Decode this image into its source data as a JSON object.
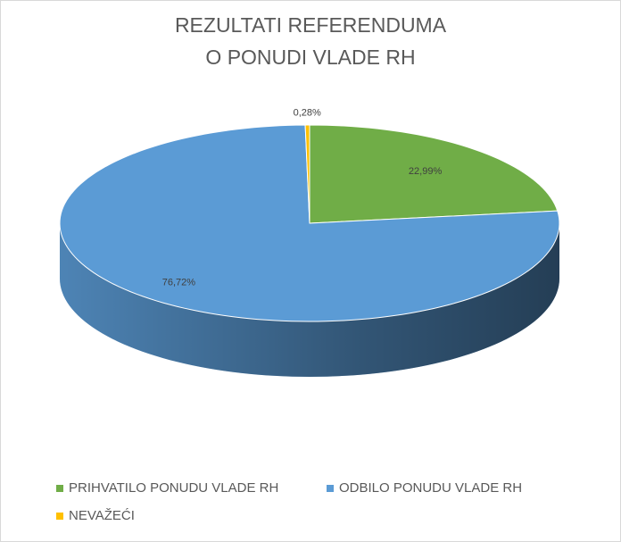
{
  "chart_data": {
    "type": "pie3d",
    "title": [
      "REZULTATI REFERENDUMA",
      "O PONUDI VLADE RH"
    ],
    "categories": [
      "PRIHVATILO PONUDU VLADE RH",
      "ODBILO PONUDU VLADE RH",
      "NEVAŽEĆI"
    ],
    "values": [
      22.99,
      76.72,
      0.28
    ],
    "value_labels": [
      "22,99%",
      "76,72%",
      "0,28%"
    ],
    "colors": [
      "#70ad47",
      "#5b9bd5",
      "#ffc000"
    ],
    "legend": "bottom"
  }
}
